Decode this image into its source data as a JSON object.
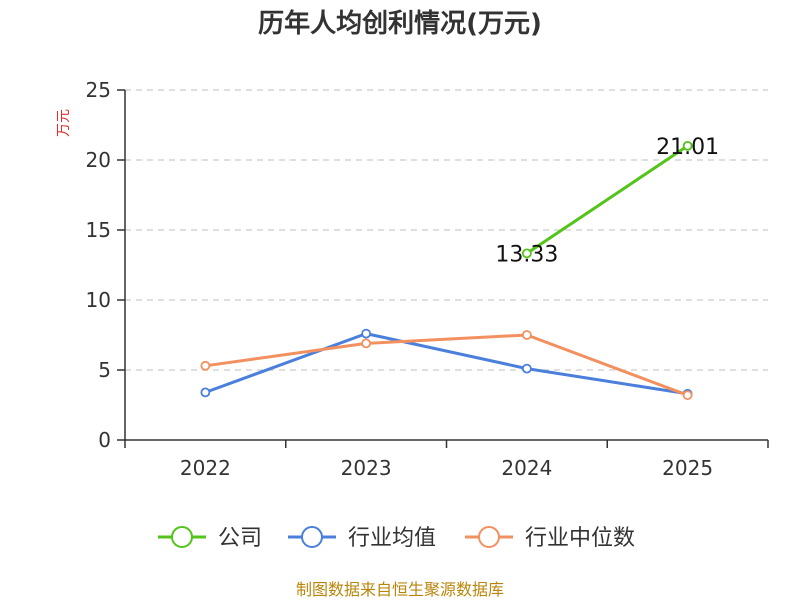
{
  "chart_data": {
    "type": "line",
    "title": "历年人均创利情况(万元)",
    "y_unit": "万元",
    "categories": [
      "2022",
      "2023",
      "2024",
      "2025"
    ],
    "ylim": [
      0,
      25
    ],
    "y_ticks": [
      0,
      5,
      10,
      15,
      20,
      25
    ],
    "grid": true,
    "legend_position": "bottom",
    "series": [
      {
        "name": "公司",
        "color": "#52c41a",
        "values": [
          null,
          null,
          13.33,
          21.01
        ],
        "data_labels": [
          "",
          "",
          "13.33",
          "21.01"
        ]
      },
      {
        "name": "行业均值",
        "color": "#4a7fdc",
        "values": [
          3.4,
          7.6,
          5.1,
          3.3
        ],
        "data_labels": [
          "",
          "",
          "",
          ""
        ]
      },
      {
        "name": "行业中位数",
        "color": "#f39060",
        "values": [
          5.3,
          6.9,
          7.5,
          3.2
        ],
        "data_labels": [
          "",
          "",
          "",
          ""
        ]
      }
    ],
    "source": "制图数据来自恒生聚源数据库"
  }
}
